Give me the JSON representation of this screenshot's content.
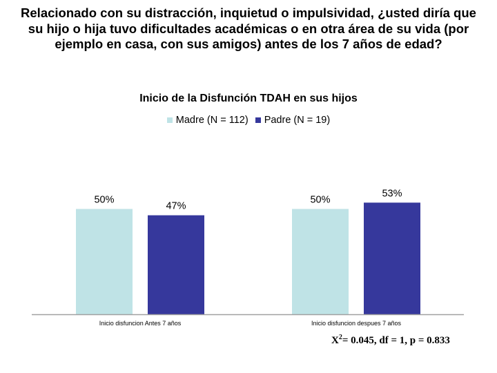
{
  "page": {
    "title": "Relacionado con su distracción, inquietud o impulsividad, ¿usted diría que su hijo o hija tuvo dificultades académicas o en otra área de su vida (por ejemplo en casa, con sus amigos) antes de los 7 años de edad?"
  },
  "stats": {
    "prefix": "X",
    "sup": "2",
    "text": "= 0.045, df = 1, p = 0.833"
  },
  "chart_data": {
    "type": "bar",
    "title": "Inicio de la Disfunción TDAH en sus hijos",
    "categories": [
      "Inicio disfuncion Antes 7 años",
      "Inicio disfuncion despues 7 años"
    ],
    "series": [
      {
        "name": "Madre (N = 112)",
        "color": "#bfe3e6",
        "values": [
          50,
          50
        ],
        "labels": [
          "50%",
          "50%"
        ]
      },
      {
        "name": "Padre (N = 19)",
        "color": "#36389c",
        "values": [
          47,
          53
        ],
        "labels": [
          "47%",
          "53%"
        ]
      }
    ],
    "xlabel": "",
    "ylabel": "",
    "ylim": [
      0,
      100
    ],
    "grid": false,
    "legend": "top-center",
    "axis_color": "#a0a0a0"
  }
}
